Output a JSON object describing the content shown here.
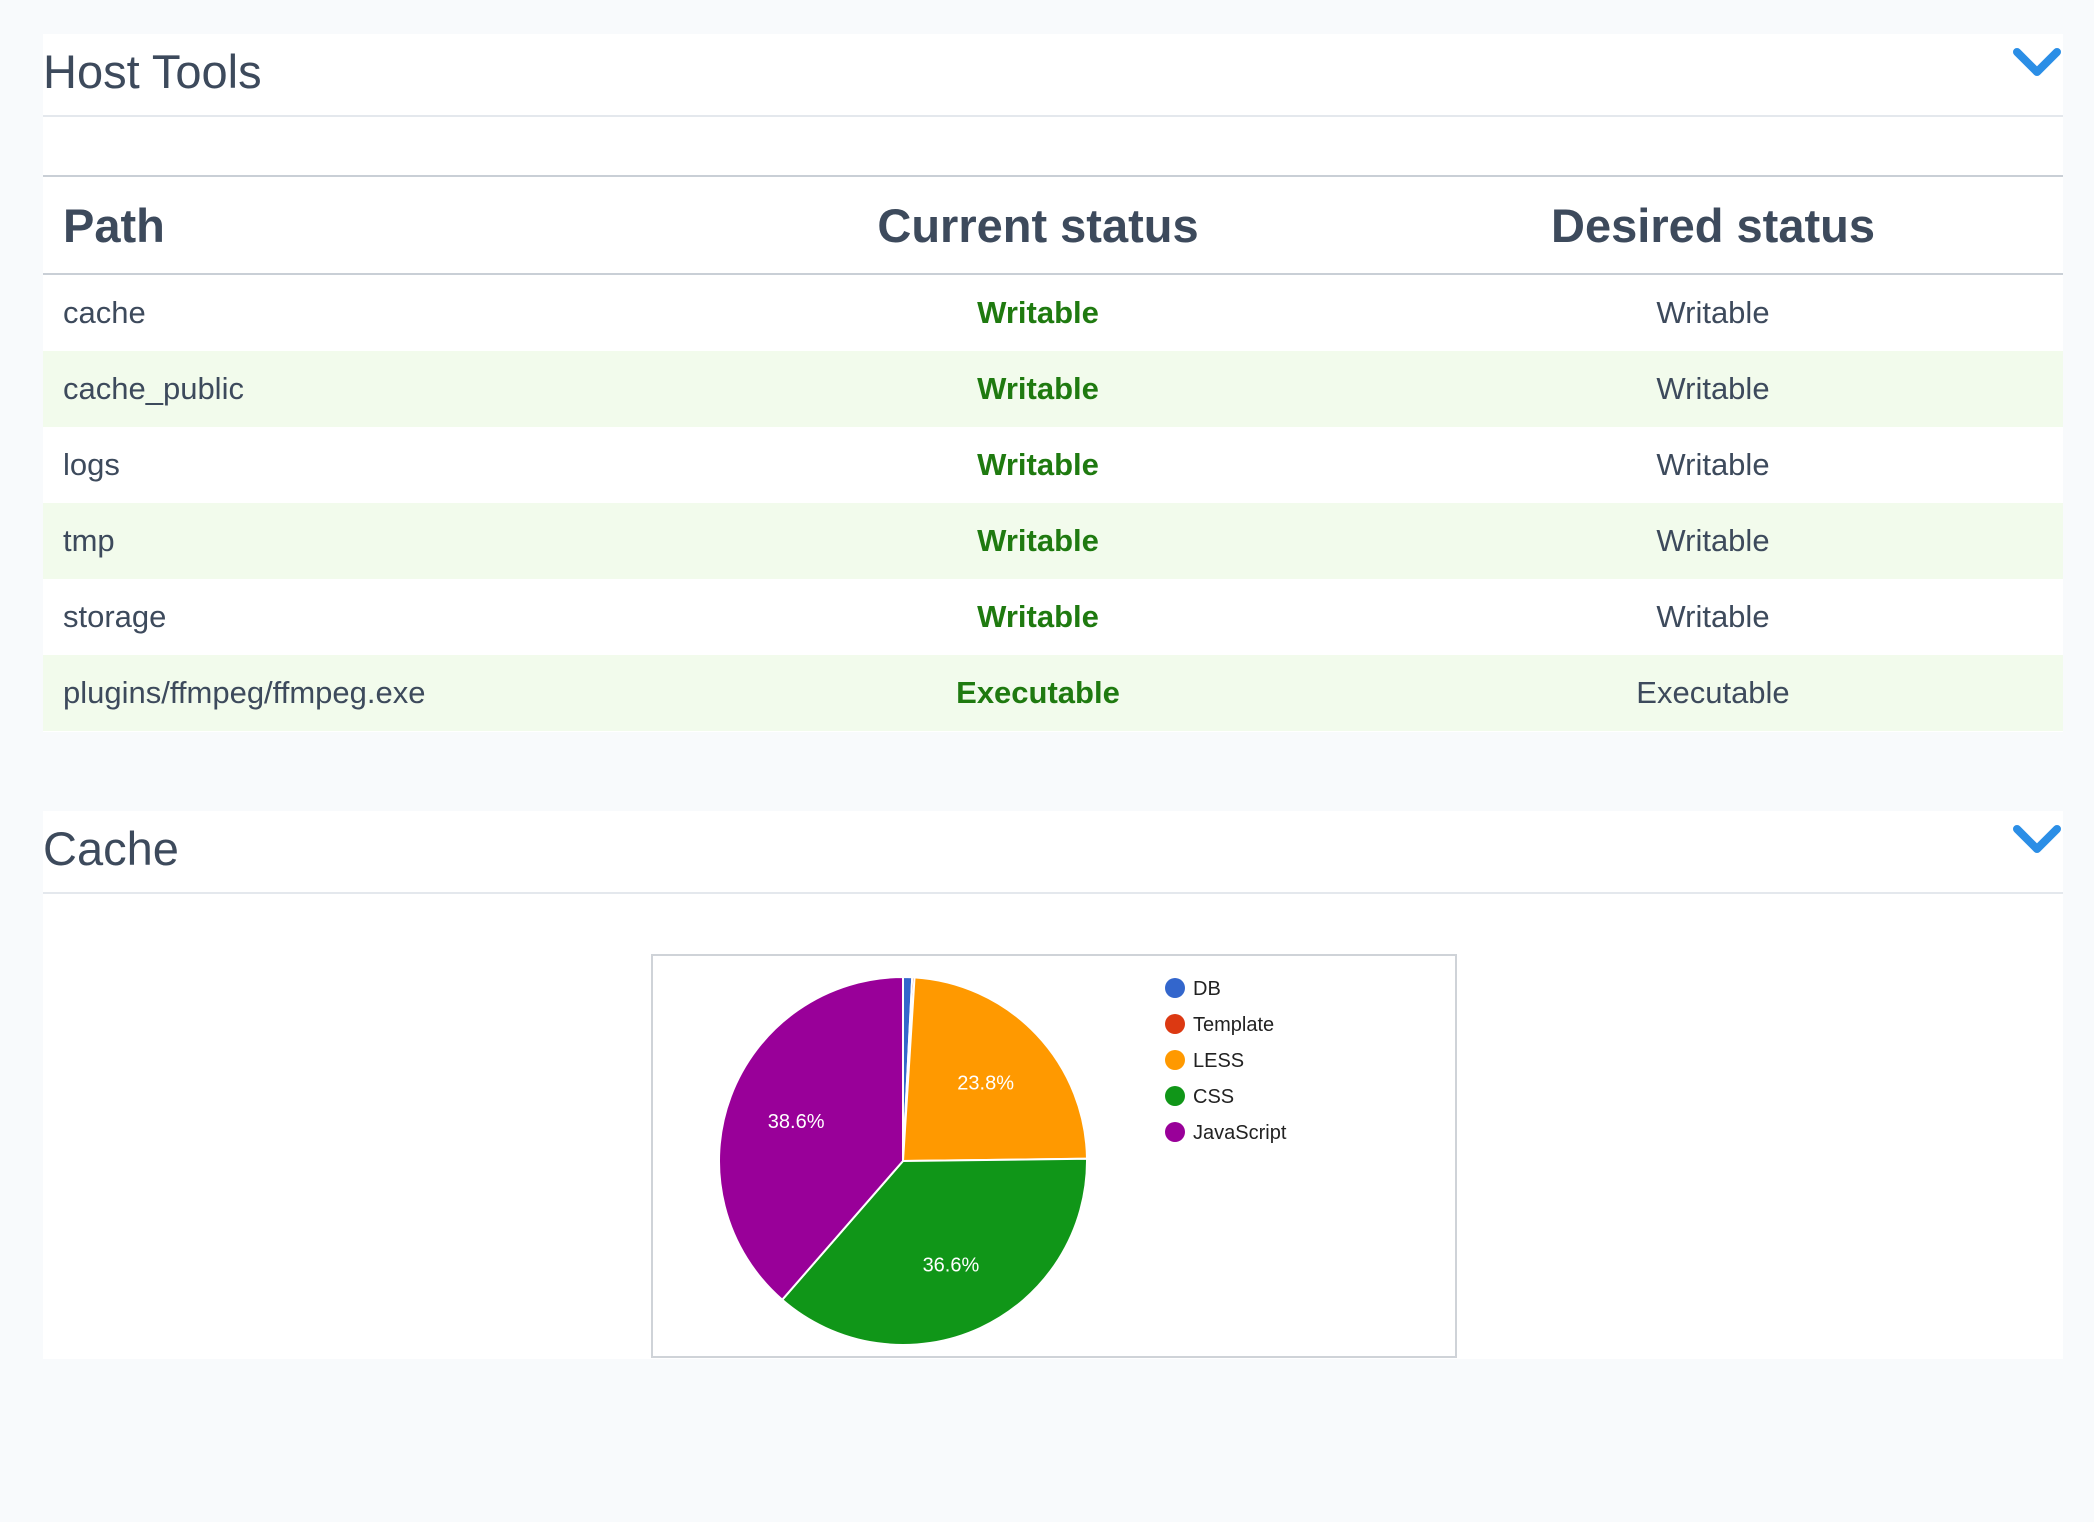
{
  "host_tools": {
    "title": "Host Tools",
    "columns": {
      "path": "Path",
      "current": "Current status",
      "desired": "Desired status"
    },
    "rows": [
      {
        "path": "cache",
        "current": "Writable",
        "desired": "Writable"
      },
      {
        "path": "cache_public",
        "current": "Writable",
        "desired": "Writable"
      },
      {
        "path": "logs",
        "current": "Writable",
        "desired": "Writable"
      },
      {
        "path": "tmp",
        "current": "Writable",
        "desired": "Writable"
      },
      {
        "path": "storage",
        "current": "Writable",
        "desired": "Writable"
      },
      {
        "path": "plugins/ffmpeg/ffmpeg.exe",
        "current": "Executable",
        "desired": "Executable"
      }
    ]
  },
  "cache": {
    "title": "Cache"
  },
  "icons": {
    "collapse": "chevron-down-icon"
  },
  "colors": {
    "accent": "#2b8ee6",
    "status_ok": "#1f7a10",
    "row_alt": "#f2fbec"
  },
  "chart_data": {
    "type": "pie",
    "categories": [
      "DB",
      "Template",
      "LESS",
      "CSS",
      "JavaScript"
    ],
    "values": [
      0.8,
      0.2,
      23.8,
      36.6,
      38.6
    ],
    "slice_labels": [
      "",
      "",
      "23.8%",
      "36.6%",
      "38.6%"
    ],
    "colors": [
      "#3366cc",
      "#dc3912",
      "#ff9900",
      "#109618",
      "#990099"
    ],
    "legend": "right"
  }
}
